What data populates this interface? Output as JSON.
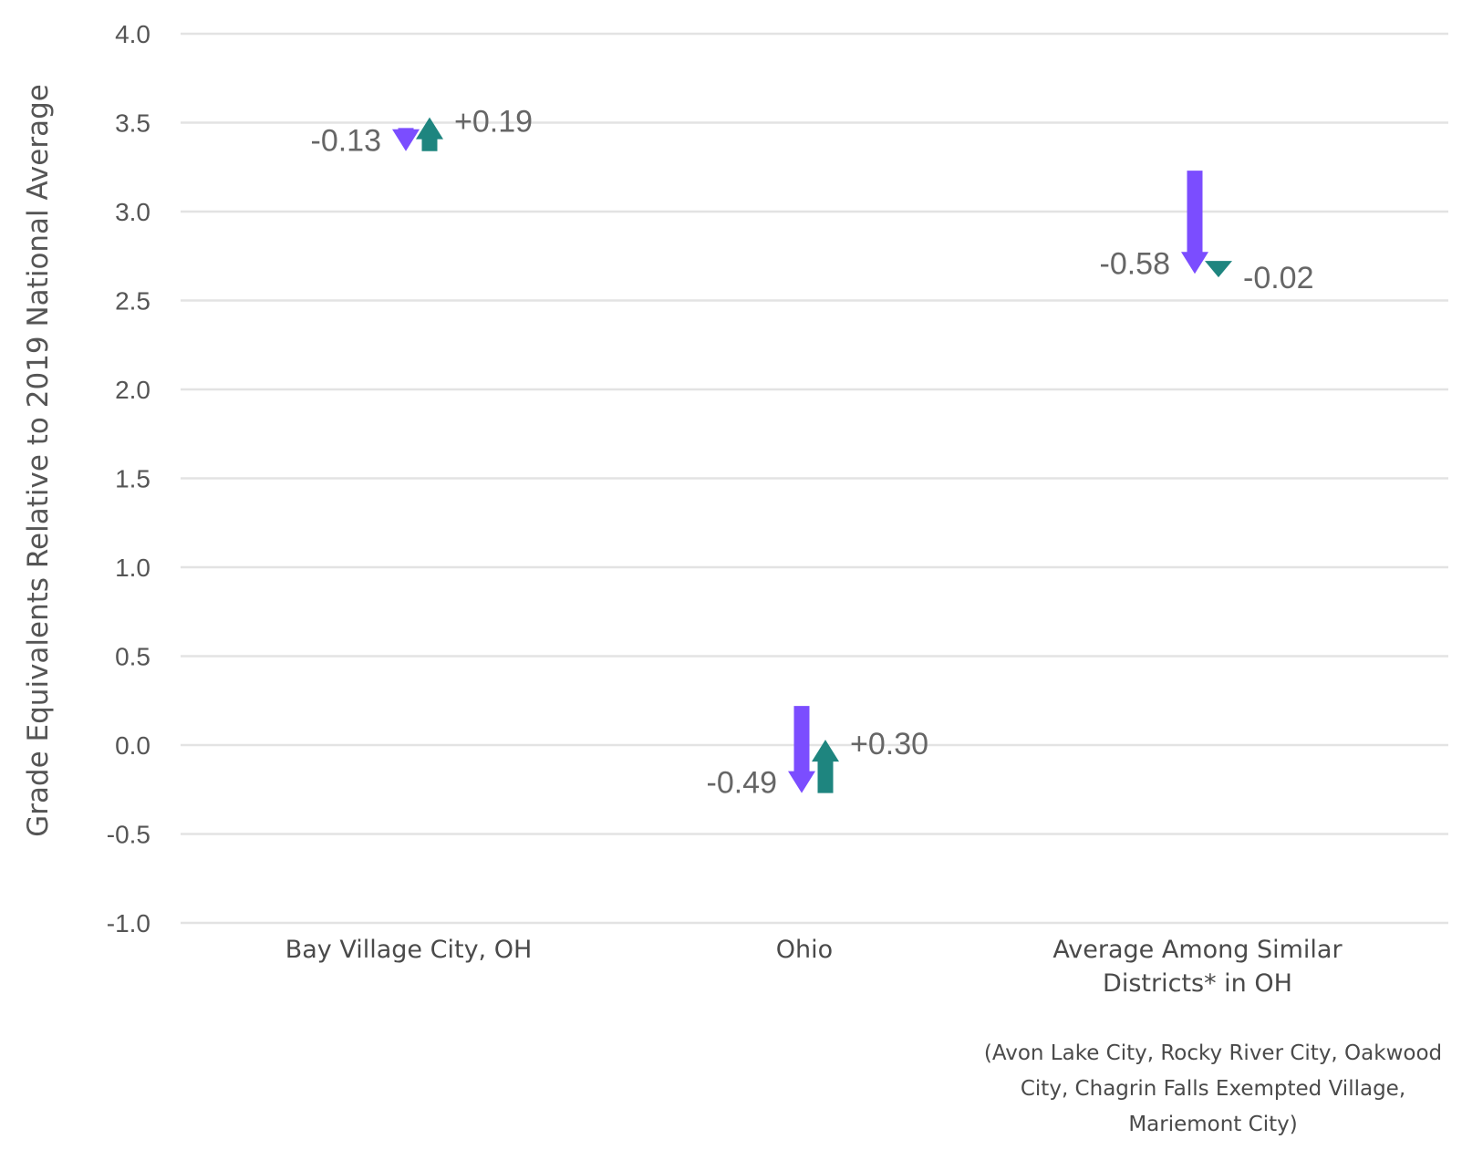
{
  "chart_data": {
    "type": "arrow",
    "ylabel": "Grade Equivalents Relative to 2019 National Average",
    "xlabel": "",
    "ylim": [
      -1.0,
      4.0
    ],
    "yticks": [
      4.0,
      3.5,
      3.0,
      2.5,
      2.0,
      1.5,
      1.0,
      0.5,
      0.0,
      -0.5,
      -1.0
    ],
    "ytick_labels": [
      "4.0",
      "3.5",
      "3.0",
      "2.5",
      "2.0",
      "1.5",
      "1.0",
      "0.5",
      "0.0",
      "-0.5",
      "-1.0"
    ],
    "grid": true,
    "categories": [
      {
        "label_lines": [
          "Bay Village City, OH"
        ],
        "start": 3.47,
        "changes": [
          {
            "value": -0.13,
            "label": "-0.13",
            "color": "#7b4dff"
          },
          {
            "value": 0.19,
            "label": "+0.19",
            "color": "#1e857f"
          }
        ]
      },
      {
        "label_lines": [
          "Ohio"
        ],
        "start": 0.22,
        "changes": [
          {
            "value": -0.49,
            "label": "-0.49",
            "color": "#7b4dff"
          },
          {
            "value": 0.3,
            "label": "+0.30",
            "color": "#1e857f"
          }
        ]
      },
      {
        "label_lines": [
          "Average Among Similar",
          "Districts* in OH"
        ],
        "start": 3.23,
        "changes": [
          {
            "value": -0.58,
            "label": "-0.58",
            "color": "#7b4dff"
          },
          {
            "value": -0.02,
            "label": "-0.02",
            "color": "#1e857f"
          }
        ]
      }
    ],
    "footnote_lines": [
      "(Avon Lake City, Rocky River City, Oakwood",
      "City, Chagrin Falls Exempted Village,",
      "Mariemont City)"
    ],
    "colors": {
      "decline": "#7b4dff",
      "change": "#1e857f",
      "grid": "#e3e3e3",
      "text": "#555555"
    }
  }
}
